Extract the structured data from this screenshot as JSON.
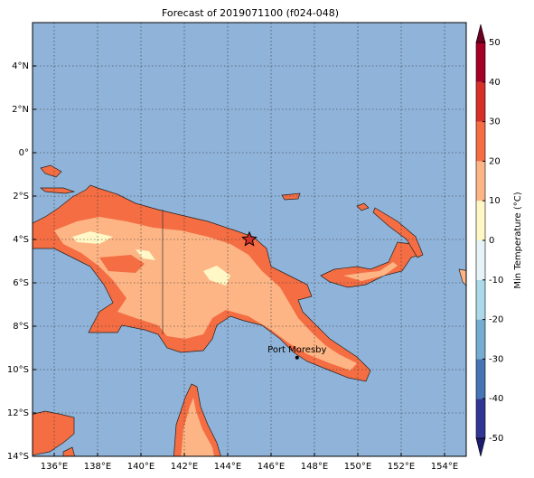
{
  "map": {
    "title": "Forecast of 2019071100 (f024-048)",
    "lon_range": [
      135,
      155
    ],
    "lat_range": [
      -14,
      6
    ],
    "lon_ticks": [
      {
        "value": 136,
        "label": "136°E"
      },
      {
        "value": 138,
        "label": "138°E"
      },
      {
        "value": 140,
        "label": "140°E"
      },
      {
        "value": 142,
        "label": "142°E"
      },
      {
        "value": 144,
        "label": "144°E"
      },
      {
        "value": 146,
        "label": "146°E"
      },
      {
        "value": 148,
        "label": "148°E"
      },
      {
        "value": 150,
        "label": "150°E"
      },
      {
        "value": 152,
        "label": "152°E"
      },
      {
        "value": 154,
        "label": "154°E"
      }
    ],
    "lat_ticks": [
      {
        "value": 4,
        "label": "4°N"
      },
      {
        "value": 2,
        "label": "2°N"
      },
      {
        "value": 0,
        "label": "0°"
      },
      {
        "value": -2,
        "label": "2°S"
      },
      {
        "value": -4,
        "label": "4°S"
      },
      {
        "value": -6,
        "label": "6°S"
      },
      {
        "value": -8,
        "label": "8°S"
      },
      {
        "value": -10,
        "label": "10°S"
      },
      {
        "value": -12,
        "label": "12°S"
      },
      {
        "value": -14,
        "label": "14°S"
      }
    ],
    "places": [
      {
        "name": "Port Moresby",
        "lon": 147.2,
        "lat": -9.45
      }
    ],
    "marker": {
      "lon": 145,
      "lat": -4
    },
    "colorbar": {
      "label": "Min Temperature (°C)",
      "range": [
        -50,
        50
      ],
      "ticks": [
        -50,
        -40,
        -30,
        -20,
        -10,
        0,
        10,
        20,
        30,
        40,
        50
      ],
      "colors": [
        "#313695",
        "#4575b4",
        "#74add1",
        "#abd9e9",
        "#e6f4f8",
        "#fff8c6",
        "#fdb585",
        "#f46d43",
        "#d73027",
        "#a50026"
      ],
      "under_color": "#1c1c6e",
      "over_color": "#6b0020"
    }
  }
}
